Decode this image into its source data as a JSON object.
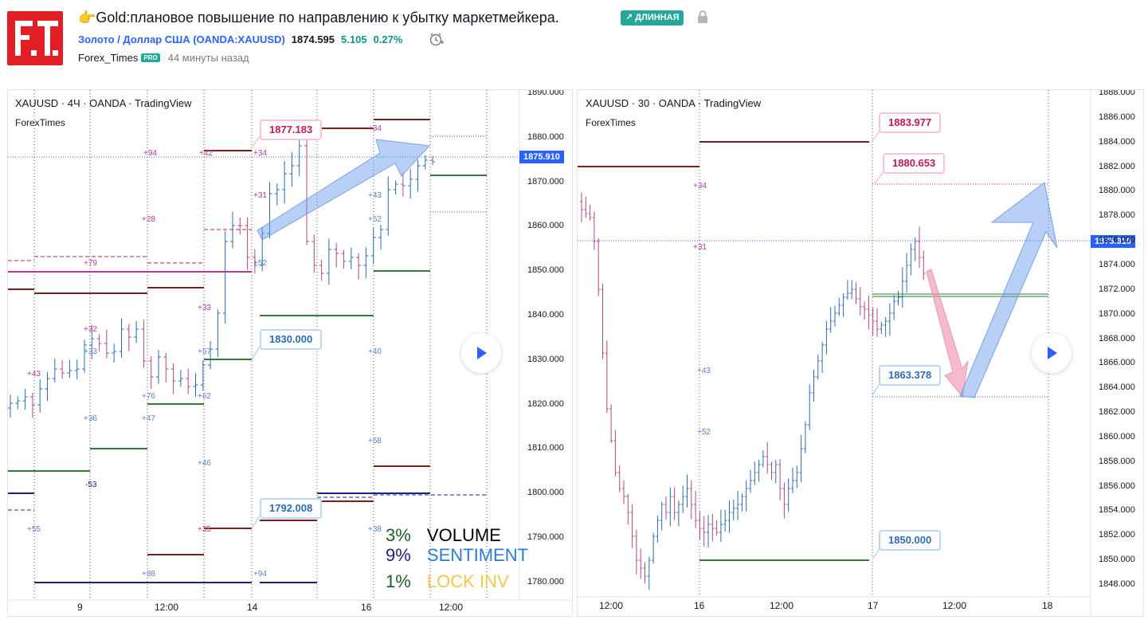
{
  "header": {
    "logo_text": "F.T.",
    "title": "👉Gold:плановое повышение по направлению к убытку маркетмейкера.",
    "badge": "↗ ДЛИННАЯ",
    "symbol_link": "Золото / Доллар США (OANDA:XAUUSD)",
    "price": "1874.595",
    "change": "5.105",
    "change_pct": "0.27%",
    "author": "Forex_Times",
    "author_badge": "PRO",
    "time_ago": "44 минуты назад"
  },
  "colors": {
    "accent": "#2962ff",
    "positive": "#089981",
    "logo": "#e31e24",
    "dark_red_level": "#7b1f1f",
    "green_level": "#2e7d32",
    "navy_level": "#1a237e",
    "magenta_level": "#b03aa0"
  },
  "chart_left": {
    "legend": "XAUUSD · 4Ч · OANDA · TradingView",
    "sub": "ForexTimes",
    "current_price": "1875.910",
    "price_axis": [
      "1890.000",
      "1880.000",
      "1870.000",
      "1860.000",
      "1850.000",
      "1840.000",
      "1830.000",
      "1820.000",
      "1810.000",
      "1800.000",
      "1790.000",
      "1780.000"
    ],
    "time_axis": [
      "9",
      "12:00",
      "14",
      "16",
      "12:00"
    ],
    "callouts": [
      "1877.183",
      "1830.000",
      "1792.008"
    ],
    "small_labels": [
      "+94",
      "+42",
      "+34",
      "+34",
      "+31",
      "+28",
      "+79",
      "+52",
      "+43",
      "+52",
      "+33",
      "+32",
      "+33",
      "+57",
      "+43",
      "+76",
      "+62",
      "+40",
      "+36",
      "+47",
      "+46",
      "-53",
      "+58",
      "+55",
      "+35",
      "+38",
      "+88",
      "+94"
    ],
    "info": [
      {
        "pct": "3%",
        "label": "VOLUME",
        "pct_color": "#1b5e20",
        "label_color": "#000000"
      },
      {
        "pct": "9%",
        "label": "SENTIMENT",
        "pct_color": "#1a237e",
        "label_color": "#2b7bd0"
      },
      {
        "pct": "1%",
        "label": "LOCK INV",
        "pct_color": "#1b5e20",
        "label_color": "#f2c94c"
      }
    ]
  },
  "chart_right": {
    "legend": "XAUUSD · 30 · OANDA · TradingView",
    "sub": "ForexTimes",
    "current_price": "1875.910",
    "price_axis": [
      "1888.000",
      "1886.000",
      "1884.000",
      "1882.000",
      "1880.000",
      "1878.000",
      "1876.000",
      "1874.000",
      "1872.000",
      "1870.000",
      "1868.000",
      "1866.000",
      "1864.000",
      "1862.000",
      "1860.000",
      "1858.000",
      "1856.000",
      "1854.000",
      "1852.000",
      "1850.000",
      "1848.000"
    ],
    "time_axis": [
      "12:00",
      "16",
      "12:00",
      "17",
      "12:00",
      "18"
    ],
    "callouts": [
      "1883.977",
      "1880.653",
      "1863.378",
      "1850.000"
    ],
    "small_labels": [
      "+34",
      "+31",
      "+43",
      "+52"
    ]
  }
}
